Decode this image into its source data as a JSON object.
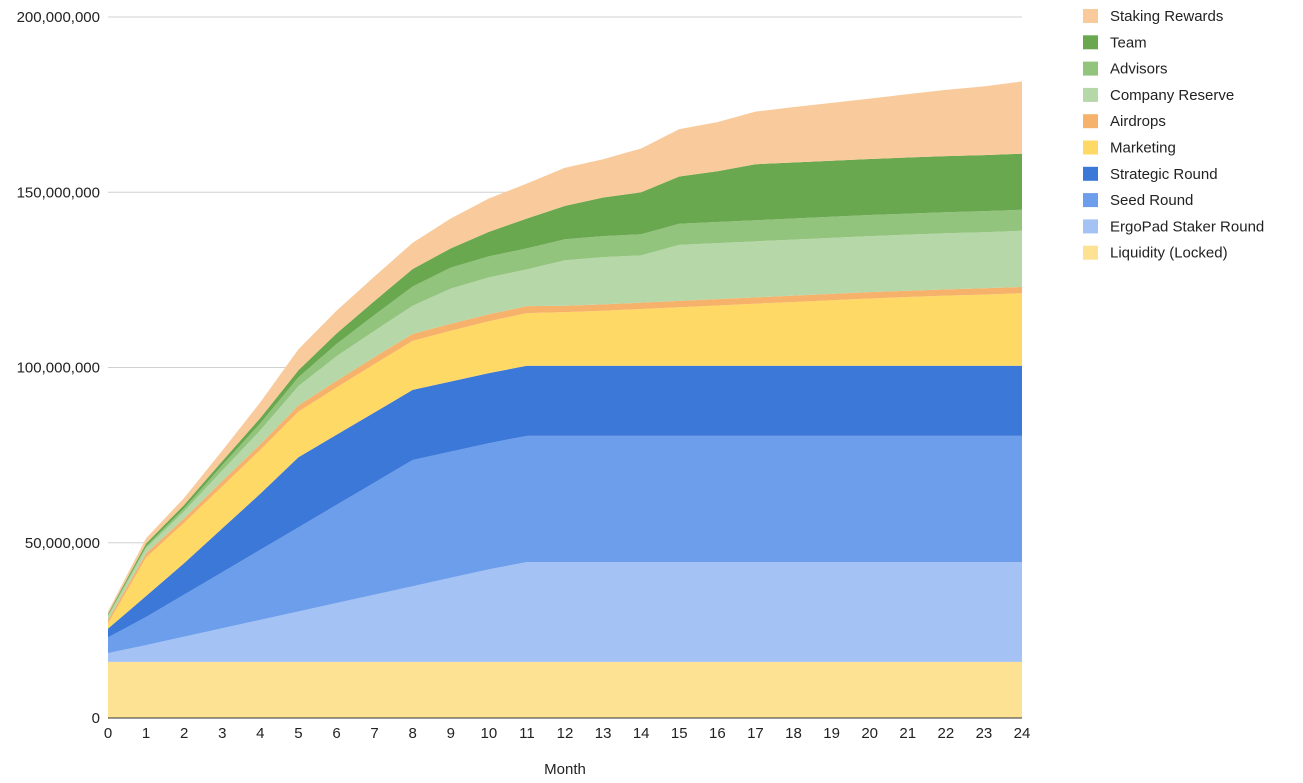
{
  "chart_data": {
    "type": "area",
    "stacked": true,
    "xlabel": "Month",
    "ylabel": "",
    "ylim": [
      0,
      200000000
    ],
    "yticks": [
      0,
      50000000,
      100000000,
      150000000,
      200000000
    ],
    "ytick_labels": [
      "0",
      "50,000,000",
      "100,000,000",
      "150,000,000",
      "200,000,000"
    ],
    "grid": true,
    "legend_position": "right",
    "x": [
      0,
      1,
      2,
      3,
      4,
      5,
      6,
      7,
      8,
      9,
      10,
      11,
      12,
      13,
      14,
      15,
      16,
      17,
      18,
      19,
      20,
      21,
      22,
      23,
      24
    ],
    "series": [
      {
        "name": "Liquidity (Locked)",
        "color": "#fde293",
        "values": [
          16000000,
          16000000,
          16000000,
          16000000,
          16000000,
          16000000,
          16000000,
          16000000,
          16000000,
          16000000,
          16000000,
          16000000,
          16000000,
          16000000,
          16000000,
          16000000,
          16000000,
          16000000,
          16000000,
          16000000,
          16000000,
          16000000,
          16000000,
          16000000,
          16000000
        ]
      },
      {
        "name": "ErgoPad Staker Round",
        "color": "#a4c2f4",
        "values": [
          2500000,
          4800000,
          7200000,
          9600000,
          12000000,
          14400000,
          16800000,
          19200000,
          21600000,
          24000000,
          26400000,
          28500000,
          28500000,
          28500000,
          28500000,
          28500000,
          28500000,
          28500000,
          28500000,
          28500000,
          28500000,
          28500000,
          28500000,
          28500000,
          28500000
        ]
      },
      {
        "name": "Seed Round",
        "color": "#6d9eeb",
        "values": [
          4500000,
          8000000,
          12000000,
          16000000,
          20000000,
          24000000,
          28000000,
          32000000,
          36000000,
          36000000,
          36000000,
          36000000,
          36000000,
          36000000,
          36000000,
          36000000,
          36000000,
          36000000,
          36000000,
          36000000,
          36000000,
          36000000,
          36000000,
          36000000,
          36000000
        ]
      },
      {
        "name": "Strategic Round",
        "color": "#3c78d8",
        "values": [
          2500000,
          6000000,
          9000000,
          12500000,
          16000000,
          20000000,
          20000000,
          20000000,
          20000000,
          20000000,
          20000000,
          20000000,
          20000000,
          20000000,
          20000000,
          20000000,
          20000000,
          20000000,
          20000000,
          20000000,
          20000000,
          20000000,
          20000000,
          20000000,
          20000000
        ]
      },
      {
        "name": "Marketing",
        "color": "#ffd966",
        "values": [
          1500000,
          11000000,
          11500000,
          12000000,
          12500000,
          13000000,
          13500000,
          13800000,
          14000000,
          14500000,
          14800000,
          15000000,
          15300000,
          15700000,
          16200000,
          16700000,
          17200000,
          17700000,
          18200000,
          18700000,
          19200000,
          19600000,
          20000000,
          20300000,
          20700000
        ]
      },
      {
        "name": "Airdrops",
        "color": "#f6b26b",
        "values": [
          1000000,
          1200000,
          1300000,
          1500000,
          1600000,
          1800000,
          1900000,
          2000000,
          2000000,
          2000000,
          2000000,
          2000000,
          1800000,
          1800000,
          1800000,
          1800000,
          1800000,
          1800000,
          1800000,
          1800000,
          1800000,
          1800000,
          1800000,
          1800000,
          1800000
        ]
      },
      {
        "name": "Company Reserve",
        "color": "#b6d7a8",
        "values": [
          1000000,
          1500000,
          2000000,
          3000000,
          4000000,
          5500000,
          7000000,
          7500000,
          8000000,
          10000000,
          10500000,
          10500000,
          13000000,
          13500000,
          13500000,
          16000000,
          16000000,
          16000000,
          16000000,
          16000000,
          16000000,
          16000000,
          16000000,
          16000000,
          16000000
        ]
      },
      {
        "name": "Advisors",
        "color": "#93c47d",
        "values": [
          300000,
          500000,
          800000,
          1500000,
          2000000,
          2500000,
          3500000,
          4500000,
          5500000,
          6000000,
          6000000,
          6000000,
          6000000,
          6000000,
          6000000,
          6000000,
          6000000,
          6000000,
          6000000,
          6000000,
          6000000,
          6000000,
          6000000,
          6000000,
          6000000
        ]
      },
      {
        "name": "Team",
        "color": "#6aa84f",
        "values": [
          400000,
          800000,
          1000000,
          1200000,
          1500000,
          2000000,
          3000000,
          4000000,
          5000000,
          5500000,
          7000000,
          8500000,
          9500000,
          11000000,
          12000000,
          13500000,
          14500000,
          16000000,
          16000000,
          16000000,
          16000000,
          16000000,
          16000000,
          16000000,
          16000000
        ]
      },
      {
        "name": "Staking Rewards",
        "color": "#f9cb9c",
        "values": [
          700000,
          1500000,
          2000000,
          3000000,
          4500000,
          6000000,
          6500000,
          7000000,
          7500000,
          8500000,
          9500000,
          10000000,
          10900000,
          10900000,
          12500000,
          13500000,
          14000000,
          15000000,
          15800000,
          16500000,
          17200000,
          18100000,
          18900000,
          19600000,
          20600000
        ]
      }
    ]
  }
}
